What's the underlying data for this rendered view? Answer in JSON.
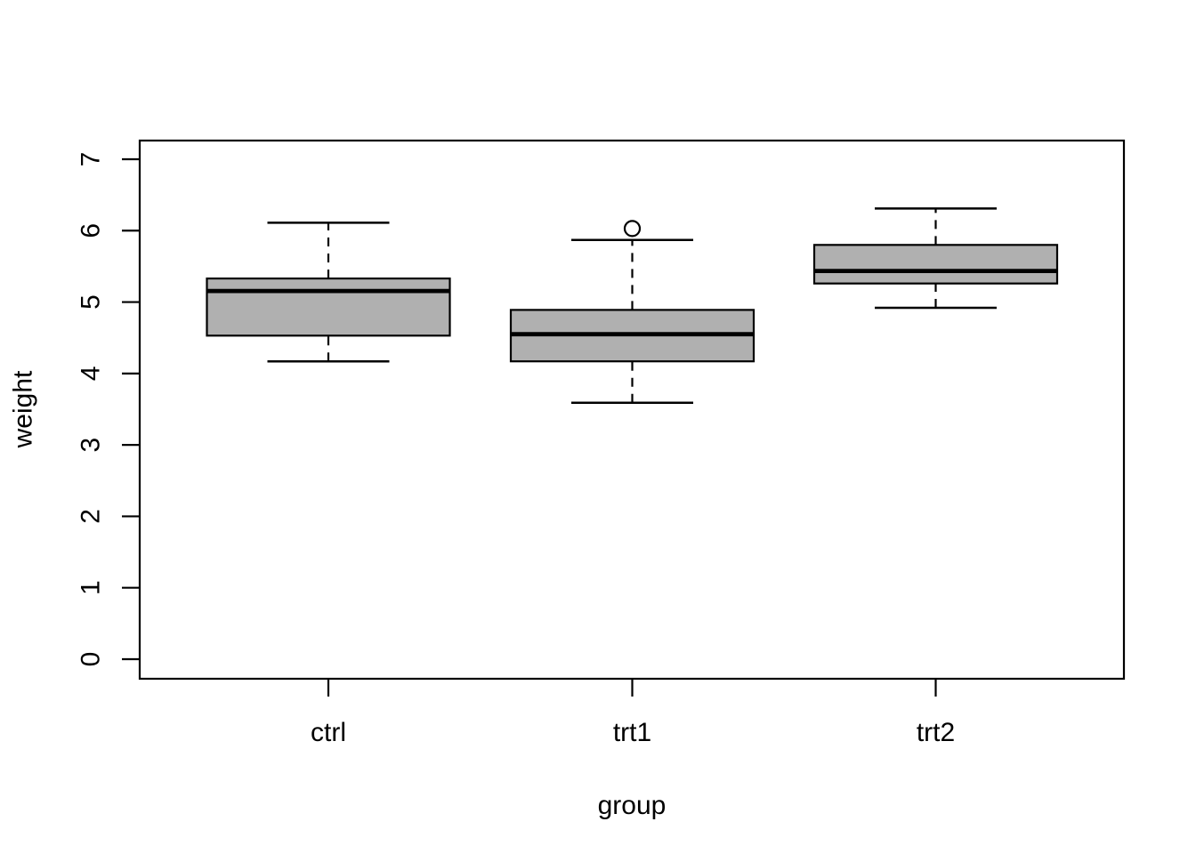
{
  "figure": {
    "background_color": "#ffffff",
    "line_color": "#000000",
    "box_fill_color": "#b0b0b0"
  },
  "chart_data": {
    "type": "boxplot",
    "title": "",
    "xlabel": "group",
    "ylabel": "weight",
    "categories": [
      "ctrl",
      "trt1",
      "trt2"
    ],
    "ylim": [
      0,
      7
    ],
    "yticks": [
      0,
      1,
      2,
      3,
      4,
      5,
      6,
      7
    ],
    "grid": false,
    "legend": false,
    "orientation": "vertical",
    "groups": [
      {
        "label": "ctrl",
        "whisker_low": 4.17,
        "q1": 4.53,
        "median": 5.155,
        "q3": 5.33,
        "whisker_high": 6.11,
        "outliers": []
      },
      {
        "label": "trt1",
        "whisker_low": 3.59,
        "q1": 4.17,
        "median": 4.55,
        "q3": 4.89,
        "whisker_high": 5.87,
        "outliers": [
          6.03
        ]
      },
      {
        "label": "trt2",
        "whisker_low": 4.92,
        "q1": 5.26,
        "median": 5.435,
        "q3": 5.8,
        "whisker_high": 6.31,
        "outliers": []
      }
    ]
  }
}
